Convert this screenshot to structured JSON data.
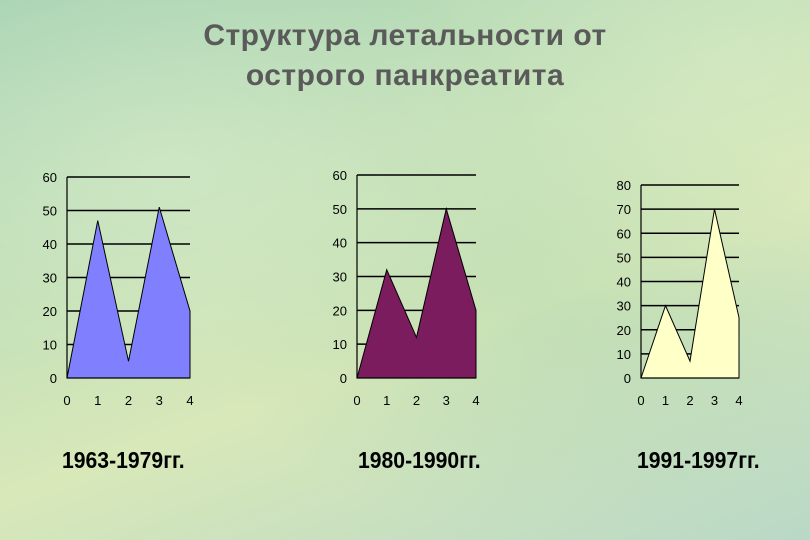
{
  "title": {
    "line1": "Структура летальности от",
    "line2": "острого панкреатита"
  },
  "chart_data": [
    {
      "type": "area",
      "title": "1963-1979гг.",
      "x": [
        0,
        1,
        2,
        3,
        4
      ],
      "xticks": [
        "0",
        "1",
        "2",
        "3",
        "4"
      ],
      "values": [
        0,
        47,
        5,
        51,
        20
      ],
      "ylim": [
        0,
        60
      ],
      "yticks": [
        "0",
        "10",
        "20",
        "30",
        "40",
        "50",
        "60"
      ],
      "color": "#8080ff",
      "grid": true
    },
    {
      "type": "area",
      "title": "1980-1990гг.",
      "x": [
        0,
        1,
        2,
        3,
        4
      ],
      "xticks": [
        "0",
        "1",
        "2",
        "3",
        "4"
      ],
      "values": [
        0,
        32,
        12,
        50,
        20
      ],
      "ylim": [
        0,
        60
      ],
      "yticks": [
        "0",
        "10",
        "20",
        "30",
        "40",
        "50",
        "60"
      ],
      "color": "#7a1c5e",
      "grid": true
    },
    {
      "type": "area",
      "title": "1991-1997гг.",
      "x": [
        0,
        1,
        2,
        3,
        4
      ],
      "xticks": [
        "0",
        "1",
        "2",
        "3",
        "4"
      ],
      "values": [
        0,
        30,
        7,
        70,
        25
      ],
      "ylim": [
        0,
        80
      ],
      "yticks": [
        "0",
        "10",
        "20",
        "30",
        "40",
        "50",
        "60",
        "70",
        "80"
      ],
      "color": "#ffffc8",
      "grid": true
    }
  ]
}
